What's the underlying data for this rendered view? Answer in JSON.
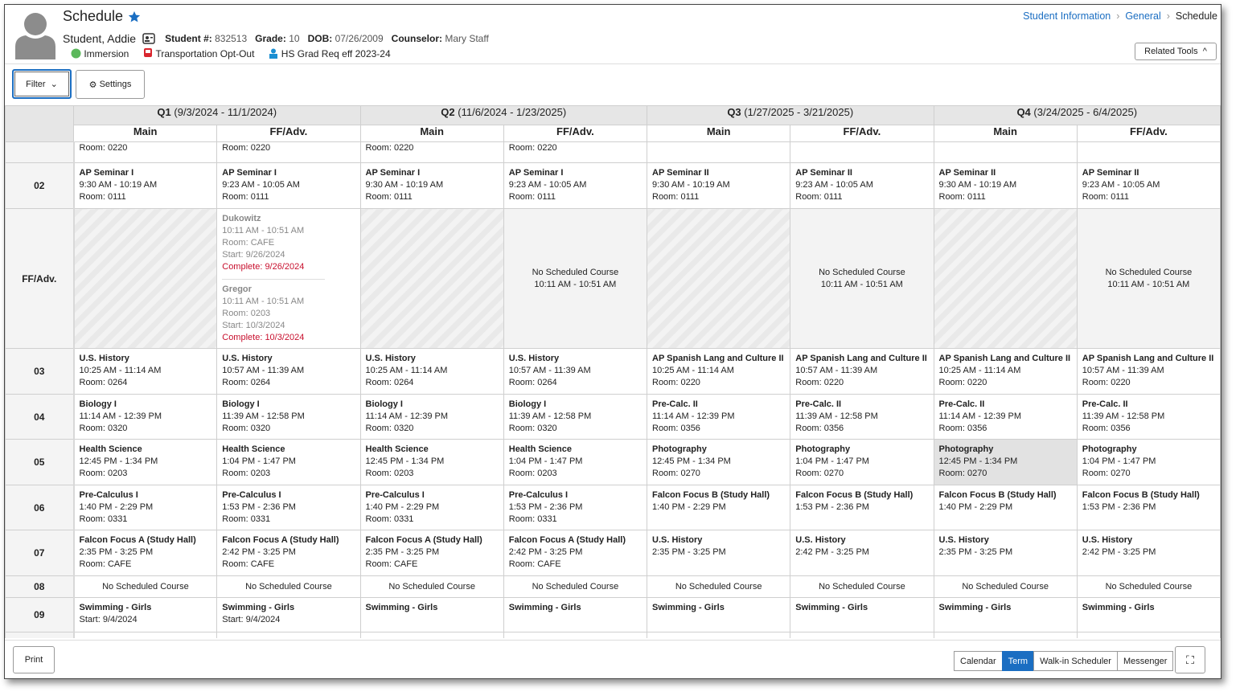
{
  "header": {
    "title": "Schedule",
    "student_name": "Student, Addie",
    "student_number_label": "Student #:",
    "student_number": "832513",
    "grade_label": "Grade:",
    "grade": "10",
    "dob_label": "DOB:",
    "dob": "07/26/2009",
    "counselor_label": "Counselor:",
    "counselor": "Mary Staff",
    "flags": [
      "Immersion",
      "Transportation Opt-Out",
      "HS Grad Req eff 2023-24"
    ],
    "breadcrumb": [
      "Student Information",
      "General",
      "Schedule"
    ],
    "related_tools": "Related Tools"
  },
  "toolbar": {
    "filter": "Filter",
    "settings": "Settings"
  },
  "terms": [
    {
      "name": "Q1",
      "dates": "(9/3/2024 - 11/1/2024)"
    },
    {
      "name": "Q2",
      "dates": "(11/6/2024 - 1/23/2025)"
    },
    {
      "name": "Q3",
      "dates": "(1/27/2025 - 3/21/2025)"
    },
    {
      "name": "Q4",
      "dates": "(3/24/2025 - 6/4/2025)"
    }
  ],
  "columns": [
    "Main",
    "FF/Adv."
  ],
  "periods": [
    {
      "cells": [
        {
          "lines": [
            "Room: 0220"
          ]
        },
        {
          "lines": [
            "Room: 0220"
          ]
        },
        {
          "lines": [
            "Room: 0220"
          ]
        },
        {
          "lines": [
            "Room: 0220"
          ]
        },
        {},
        {},
        {},
        {}
      ]
    },
    {
      "label": "02",
      "cells": [
        {
          "title": "AP Seminar I",
          "lines": [
            "9:30 AM - 10:19 AM",
            "Room: 0111"
          ]
        },
        {
          "title": "AP Seminar I",
          "lines": [
            "9:23 AM - 10:05 AM",
            "Room: 0111"
          ]
        },
        {
          "title": "AP Seminar I",
          "lines": [
            "9:30 AM - 10:19 AM",
            "Room: 0111"
          ]
        },
        {
          "title": "AP Seminar I",
          "lines": [
            "9:23 AM - 10:05 AM",
            "Room: 0111"
          ]
        },
        {
          "title": "AP Seminar II",
          "lines": [
            "9:30 AM - 10:19 AM",
            "Room: 0111"
          ]
        },
        {
          "title": "AP Seminar II",
          "lines": [
            "9:23 AM - 10:05 AM",
            "Room: 0111"
          ]
        },
        {
          "title": "AP Seminar II",
          "lines": [
            "9:30 AM - 10:19 AM",
            "Room: 0111"
          ]
        },
        {
          "title": "AP Seminar II",
          "lines": [
            "9:23 AM - 10:05 AM",
            "Room: 0111"
          ]
        }
      ]
    },
    {
      "label": "FF/Adv.",
      "cells": [
        {
          "hatched": true
        },
        {
          "entries": [
            {
              "title": "Dukowitz",
              "lines": [
                "10:11 AM - 10:51 AM",
                "Room: CAFE",
                "Start: 9/26/2024"
              ],
              "complete": "Complete: 9/26/2024"
            },
            {
              "title": "Gregor",
              "lines": [
                "10:11 AM - 10:51 AM",
                "Room: 0203",
                "Start: 10/3/2024"
              ],
              "complete": "Complete: 10/3/2024"
            }
          ]
        },
        {
          "hatched": true
        },
        {
          "note": [
            "No Scheduled Course",
            "10:11 AM - 10:51 AM"
          ]
        },
        {
          "hatched": true
        },
        {
          "note": [
            "No Scheduled Course",
            "10:11 AM - 10:51 AM"
          ]
        },
        {
          "hatched": true
        },
        {
          "note": [
            "No Scheduled Course",
            "10:11 AM - 10:51 AM"
          ]
        }
      ]
    },
    {
      "label": "03",
      "cells": [
        {
          "title": "U.S. History",
          "lines": [
            "10:25 AM - 11:14 AM",
            "Room: 0264"
          ]
        },
        {
          "title": "U.S. History",
          "lines": [
            "10:57 AM - 11:39 AM",
            "Room: 0264"
          ]
        },
        {
          "title": "U.S. History",
          "lines": [
            "10:25 AM - 11:14 AM",
            "Room: 0264"
          ]
        },
        {
          "title": "U.S. History",
          "lines": [
            "10:57 AM - 11:39 AM",
            "Room: 0264"
          ]
        },
        {
          "title": "AP Spanish Lang and Culture II",
          "lines": [
            "10:25 AM - 11:14 AM",
            "Room: 0220"
          ]
        },
        {
          "title": "AP Spanish Lang and Culture II",
          "lines": [
            "10:57 AM - 11:39 AM",
            "Room: 0220"
          ]
        },
        {
          "title": "AP Spanish Lang and Culture II",
          "lines": [
            "10:25 AM - 11:14 AM",
            "Room: 0220"
          ]
        },
        {
          "title": "AP Spanish Lang and Culture II",
          "lines": [
            "10:57 AM - 11:39 AM",
            "Room: 0220"
          ]
        }
      ]
    },
    {
      "label": "04",
      "cells": [
        {
          "title": "Biology I",
          "lines": [
            "11:14 AM - 12:39 PM",
            "Room: 0320"
          ]
        },
        {
          "title": "Biology I",
          "lines": [
            "11:39 AM - 12:58 PM",
            "Room: 0320"
          ]
        },
        {
          "title": "Biology I",
          "lines": [
            "11:14 AM - 12:39 PM",
            "Room: 0320"
          ]
        },
        {
          "title": "Biology I",
          "lines": [
            "11:39 AM - 12:58 PM",
            "Room: 0320"
          ]
        },
        {
          "title": "Pre-Calc. II",
          "lines": [
            "11:14 AM - 12:39 PM",
            "Room: 0356"
          ]
        },
        {
          "title": "Pre-Calc. II",
          "lines": [
            "11:39 AM - 12:58 PM",
            "Room: 0356"
          ]
        },
        {
          "title": "Pre-Calc. II",
          "lines": [
            "11:14 AM - 12:39 PM",
            "Room: 0356"
          ]
        },
        {
          "title": "Pre-Calc. II",
          "lines": [
            "11:39 AM - 12:58 PM",
            "Room: 0356"
          ]
        }
      ]
    },
    {
      "label": "05",
      "cells": [
        {
          "title": "Health Science",
          "lines": [
            "12:45 PM - 1:34 PM",
            "Room: 0203"
          ]
        },
        {
          "title": "Health Science",
          "lines": [
            "1:04 PM - 1:47 PM",
            "Room: 0203"
          ]
        },
        {
          "title": "Health Science",
          "lines": [
            "12:45 PM - 1:34 PM",
            "Room: 0203"
          ]
        },
        {
          "title": "Health Science",
          "lines": [
            "1:04 PM - 1:47 PM",
            "Room: 0203"
          ]
        },
        {
          "title": "Photography",
          "lines": [
            "12:45 PM - 1:34 PM",
            "Room: 0270"
          ]
        },
        {
          "title": "Photography",
          "lines": [
            "1:04 PM - 1:47 PM",
            "Room: 0270"
          ]
        },
        {
          "title": "Photography",
          "lines": [
            "12:45 PM - 1:34 PM",
            "Room: 0270"
          ],
          "highlight": true
        },
        {
          "title": "Photography",
          "lines": [
            "1:04 PM - 1:47 PM",
            "Room: 0270"
          ]
        }
      ]
    },
    {
      "label": "06",
      "cells": [
        {
          "title": "Pre-Calculus I",
          "lines": [
            "1:40 PM - 2:29 PM",
            "Room: 0331"
          ]
        },
        {
          "title": "Pre-Calculus I",
          "lines": [
            "1:53 PM - 2:36 PM",
            "Room: 0331"
          ]
        },
        {
          "title": "Pre-Calculus I",
          "lines": [
            "1:40 PM - 2:29 PM",
            "Room: 0331"
          ]
        },
        {
          "title": "Pre-Calculus I",
          "lines": [
            "1:53 PM - 2:36 PM",
            "Room: 0331"
          ]
        },
        {
          "title": "Falcon Focus B (Study Hall)",
          "lines": [
            "1:40 PM - 2:29 PM"
          ]
        },
        {
          "title": "Falcon Focus B (Study Hall)",
          "lines": [
            "1:53 PM - 2:36 PM"
          ]
        },
        {
          "title": "Falcon Focus B (Study Hall)",
          "lines": [
            "1:40 PM - 2:29 PM"
          ]
        },
        {
          "title": "Falcon Focus B (Study Hall)",
          "lines": [
            "1:53 PM - 2:36 PM"
          ]
        }
      ]
    },
    {
      "label": "07",
      "cells": [
        {
          "title": "Falcon Focus A (Study Hall)",
          "lines": [
            "2:35 PM - 3:25 PM",
            "Room: CAFE"
          ]
        },
        {
          "title": "Falcon Focus A (Study Hall)",
          "lines": [
            "2:42 PM - 3:25 PM",
            "Room: CAFE"
          ]
        },
        {
          "title": "Falcon Focus A (Study Hall)",
          "lines": [
            "2:35 PM - 3:25 PM",
            "Room: CAFE"
          ]
        },
        {
          "title": "Falcon Focus A (Study Hall)",
          "lines": [
            "2:42 PM - 3:25 PM",
            "Room: CAFE"
          ]
        },
        {
          "title": "U.S. History",
          "lines": [
            "2:35 PM - 3:25 PM"
          ]
        },
        {
          "title": "U.S. History",
          "lines": [
            "2:42 PM - 3:25 PM"
          ]
        },
        {
          "title": "U.S. History",
          "lines": [
            "2:35 PM - 3:25 PM"
          ]
        },
        {
          "title": "U.S. History",
          "lines": [
            "2:42 PM - 3:25 PM"
          ]
        }
      ]
    },
    {
      "label": "08",
      "cells": [
        {
          "note": [
            "No Scheduled Course"
          ],
          "plain": true
        },
        {
          "note": [
            "No Scheduled Course"
          ],
          "plain": true
        },
        {
          "note": [
            "No Scheduled Course"
          ],
          "plain": true
        },
        {
          "note": [
            "No Scheduled Course"
          ],
          "plain": true
        },
        {
          "note": [
            "No Scheduled Course"
          ],
          "plain": true
        },
        {
          "note": [
            "No Scheduled Course"
          ],
          "plain": true
        },
        {
          "note": [
            "No Scheduled Course"
          ],
          "plain": true
        },
        {
          "note": [
            "No Scheduled Course"
          ],
          "plain": true
        }
      ]
    },
    {
      "label": "09",
      "cells": [
        {
          "title": "Swimming - Girls",
          "lines": [
            "Start: 9/4/2024"
          ]
        },
        {
          "title": "Swimming - Girls",
          "lines": [
            "Start: 9/4/2024"
          ]
        },
        {
          "title": "Swimming - Girls",
          "lines": []
        },
        {
          "title": "Swimming - Girls",
          "lines": []
        },
        {
          "title": "Swimming - Girls",
          "lines": []
        },
        {
          "title": "Swimming - Girls",
          "lines": []
        },
        {
          "title": "Swimming - Girls",
          "lines": []
        },
        {
          "title": "Swimming - Girls",
          "lines": []
        }
      ]
    }
  ],
  "footer": {
    "print": "Print",
    "views": [
      "Calendar",
      "Term",
      "Walk-in Scheduler",
      "Messenger"
    ],
    "active_view": 1
  }
}
